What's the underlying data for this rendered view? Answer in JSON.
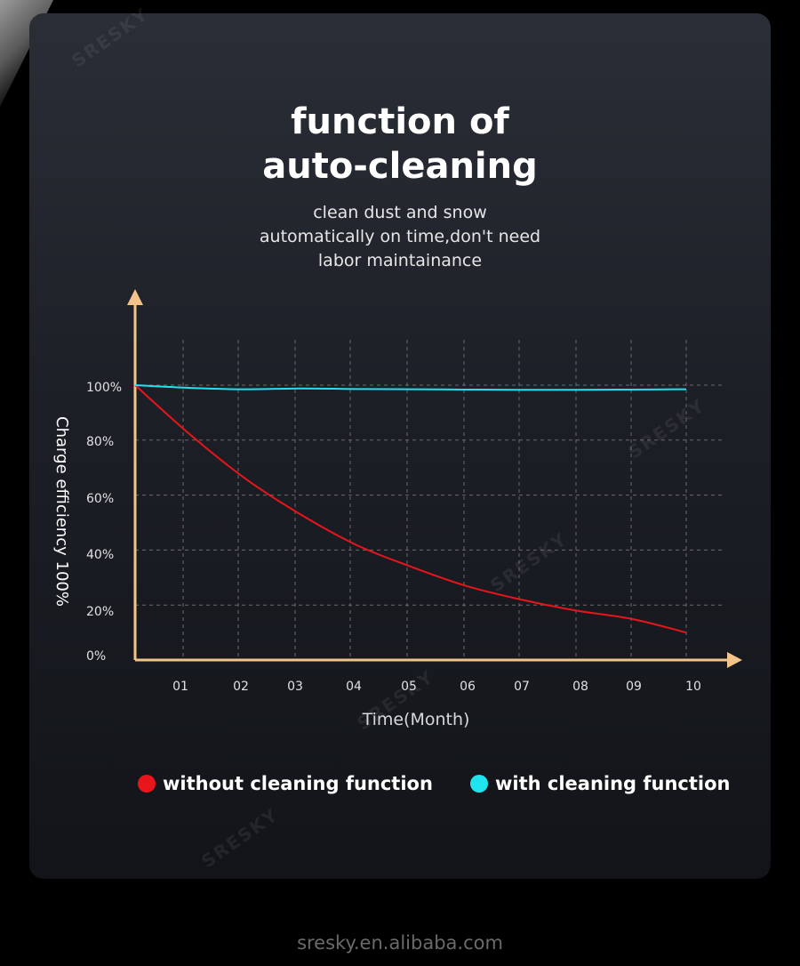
{
  "header": {
    "title_line1": "function of",
    "title_line2": "auto-cleaning",
    "subtitle_line1": "clean dust and snow",
    "subtitle_line2": "automatically on time,don't need",
    "subtitle_line3": "labor maintainance"
  },
  "watermark_text": "SRESKY",
  "chart_data": {
    "type": "line",
    "xlabel": "Time(Month)",
    "ylabel": "Charge efficiency 100%",
    "categories": [
      "01",
      "02",
      "03",
      "04",
      "05",
      "06",
      "07",
      "08",
      "09",
      "10"
    ],
    "y_ticks": [
      "0%",
      "20%",
      "40%",
      "60%",
      "80%",
      "100%"
    ],
    "ylim": [
      0,
      100
    ],
    "x": [
      0,
      1,
      2,
      3,
      4,
      5,
      6,
      7,
      8,
      9,
      10
    ],
    "grid": true,
    "series": [
      {
        "name": "without cleaning function",
        "color": "#e8151b",
        "values": [
          100,
          82,
          66,
          53,
          42,
          34,
          27,
          22,
          18,
          15,
          10
        ]
      },
      {
        "name": "with cleaning function",
        "color": "#1fe3ee",
        "values": [
          100,
          99,
          98.5,
          98.8,
          98.6,
          98.5,
          98.4,
          98.3,
          98.3,
          98.4,
          98.5
        ]
      }
    ],
    "axis_color": "#f2c48a",
    "legend_position": "bottom"
  },
  "footer_text": "sresky.en.alibaba.com"
}
